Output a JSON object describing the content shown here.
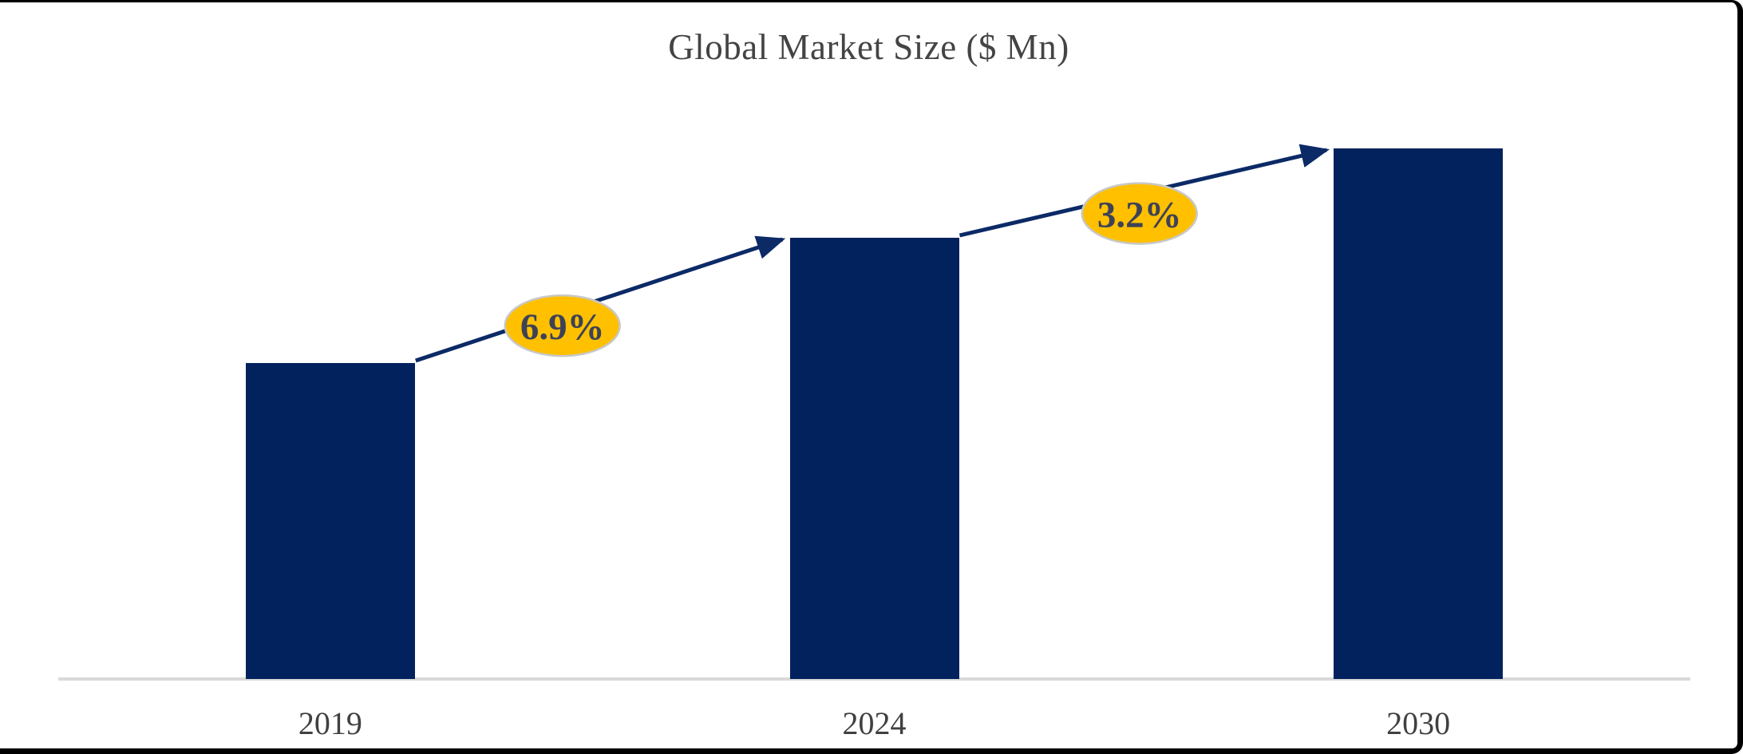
{
  "chart_data": {
    "type": "bar",
    "title": "Global Market Size ($ Mn)",
    "unit": "$ Mn",
    "categories": [
      "2019",
      "2024",
      "2030"
    ],
    "values": [
      100,
      139.6,
      167.9
    ],
    "values_note": "no y-axis or data labels shown; values are relative bar heights indexed to 2019 = 100",
    "xlabel": "",
    "ylabel": "",
    "ylim": [
      0,
      168
    ],
    "gridlines": false,
    "y_axis_visible": false,
    "legend": "none",
    "annotations": [
      {
        "label": "6.9%",
        "from": "2019",
        "to": "2024",
        "type": "growth-arrow-badge"
      },
      {
        "label": "3.2%",
        "from": "2024",
        "to": "2030",
        "type": "growth-arrow-badge"
      }
    ]
  },
  "colors": {
    "background": "#ffffff",
    "frame_border": "#000000",
    "bar": "#02225e",
    "arrow": "#0b2a66",
    "badge_fill": "#ffc000",
    "badge_stroke": "#c8c8c8",
    "badge_text": "#3e4256",
    "title_text": "#444444",
    "category_text": "#404040",
    "axis_line": "#d9d9d9"
  }
}
